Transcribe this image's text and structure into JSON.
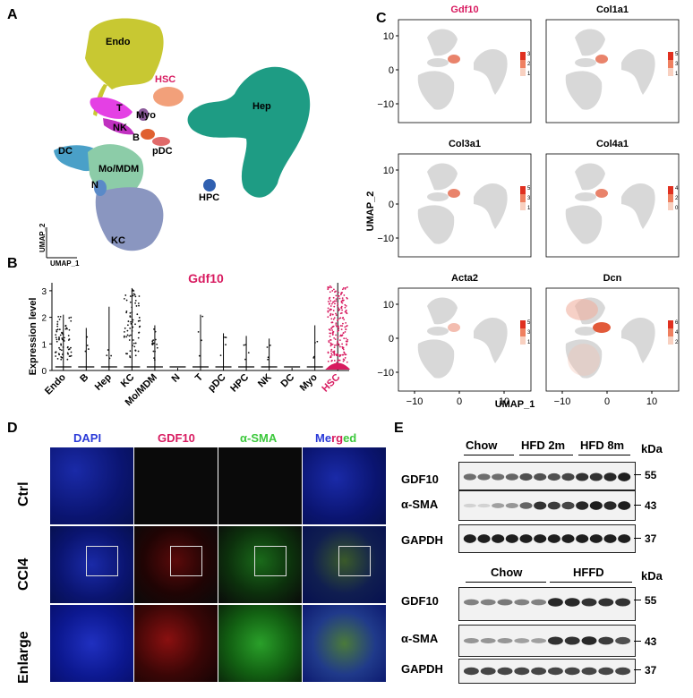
{
  "panels": {
    "a": "A",
    "b": "B",
    "c": "C",
    "d": "D",
    "e": "E"
  },
  "panel_a": {
    "clusters": [
      {
        "name": "Endo",
        "color": "#c8c832"
      },
      {
        "name": "HSC",
        "color": "#f2a07a",
        "highlight": true
      },
      {
        "name": "Hep",
        "color": "#1e9c84"
      },
      {
        "name": "T",
        "color": "#e440e4"
      },
      {
        "name": "NK",
        "color": "#c030c0"
      },
      {
        "name": "Myo",
        "color": "#8a5a9a"
      },
      {
        "name": "B",
        "color": "#e06030"
      },
      {
        "name": "pDC",
        "color": "#e06a6a"
      },
      {
        "name": "DC",
        "color": "#4aa0c8"
      },
      {
        "name": "Mo/MDM",
        "color": "#8ccca8"
      },
      {
        "name": "N",
        "color": "#5a8ac8"
      },
      {
        "name": "HPC",
        "color": "#3060b0"
      },
      {
        "name": "KC",
        "color": "#8a96c0"
      }
    ],
    "axis_y": "UMAP_2",
    "axis_x": "UMAP_1"
  },
  "panel_b": {
    "title": "Gdf10",
    "ylabel": "Expression level",
    "categories": [
      "Endo",
      "B",
      "Hep",
      "KC",
      "Mo/MDM",
      "N",
      "T",
      "pDC",
      "HPC",
      "NK",
      "DC",
      "Myo",
      "HSC"
    ],
    "highlight_color": "#d81b60"
  },
  "chart_data": {
    "type": "scatter",
    "title": "Gdf10",
    "ylabel": "Expression level",
    "categories": [
      "Endo",
      "B",
      "Hep",
      "KC",
      "Mo/MDM",
      "N",
      "T",
      "pDC",
      "HPC",
      "NK",
      "DC",
      "Myo",
      "HSC"
    ],
    "ylim": [
      0,
      3.3
    ],
    "yticks": [
      0,
      1,
      2,
      3
    ],
    "max_values": [
      2.1,
      1.6,
      2.4,
      3.1,
      1.7,
      0.1,
      2.1,
      1.4,
      1.3,
      1.2,
      0.1,
      1.7,
      3.3
    ]
  },
  "panel_c": {
    "genes": [
      "Gdf10",
      "Col1a1",
      "Col3a1",
      "Col4a1",
      "Acta2",
      "Dcn"
    ],
    "highlight_gene": "Gdf10",
    "scales": [
      [
        "3",
        "2",
        "1"
      ],
      [
        "5",
        "3",
        "1"
      ],
      [
        "5",
        "3",
        "1"
      ],
      [
        "4",
        "2",
        "0"
      ],
      [
        "5",
        "3",
        "1"
      ],
      [
        "6",
        "4",
        "2"
      ]
    ],
    "yticks": [
      "10",
      "0",
      "−10"
    ],
    "xticks": [
      "−10",
      "0",
      "10"
    ],
    "ylabel": "UMAP_2",
    "xlabel": "UMAP_1"
  },
  "panel_d": {
    "columns": [
      {
        "label": "DAPI",
        "color": "#2a3ad8"
      },
      {
        "label": "GDF10",
        "color": "#d81b60"
      },
      {
        "label": "α-SMA",
        "color": "#3cc83c"
      }
    ],
    "merged_parts": [
      {
        "text": "Me",
        "color": "#2a3ad8"
      },
      {
        "text": "rg",
        "color": "#d81b60"
      },
      {
        "text": "ed",
        "color": "#3cc83c"
      }
    ],
    "rows": [
      "Ctrl",
      "CCl4",
      "Enlarge"
    ]
  },
  "panel_e": {
    "top": {
      "groups": [
        "Chow",
        "HFD 2m",
        "HFD 8m"
      ],
      "unit": "kDa",
      "bands": [
        {
          "name": "GDF10",
          "kda": "55"
        },
        {
          "name": "α-SMA",
          "kda": "43"
        },
        {
          "name": "GAPDH",
          "kda": "37"
        }
      ]
    },
    "bottom": {
      "groups": [
        "Chow",
        "HFFD"
      ],
      "unit": "kDa",
      "bands": [
        {
          "name": "GDF10",
          "kda": "55"
        },
        {
          "name": "α-SMA",
          "kda": "43"
        },
        {
          "name": "GAPDH",
          "kda": "37"
        }
      ]
    }
  }
}
